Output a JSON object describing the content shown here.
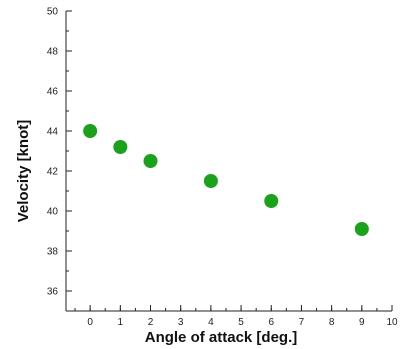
{
  "chart_data": {
    "type": "scatter",
    "title": "",
    "xlabel": "Angle of attack [deg.]",
    "ylabel": "Velocity [knot]",
    "xlim": [
      -0.8,
      10
    ],
    "ylim": [
      35,
      50
    ],
    "x_ticks": [
      0,
      1,
      2,
      3,
      4,
      5,
      6,
      7,
      8,
      9,
      10
    ],
    "y_ticks": [
      36,
      38,
      40,
      42,
      44,
      46,
      48,
      50
    ],
    "x_tick_labels": [
      "0",
      "1",
      "2",
      "3",
      "4",
      "5",
      "6",
      "7",
      "8",
      "9",
      "10"
    ],
    "y_tick_labels": [
      "36",
      "38",
      "40",
      "42",
      "44",
      "46",
      "48",
      "50"
    ],
    "grid": false,
    "legend": "none",
    "series": [
      {
        "color": "#1aa31a",
        "points": [
          {
            "x": 0,
            "y": 44.0
          },
          {
            "x": 1,
            "y": 43.2
          },
          {
            "x": 2,
            "y": 42.5
          },
          {
            "x": 4,
            "y": 41.5
          },
          {
            "x": 6,
            "y": 40.5
          },
          {
            "x": 9,
            "y": 39.1
          }
        ]
      }
    ]
  }
}
